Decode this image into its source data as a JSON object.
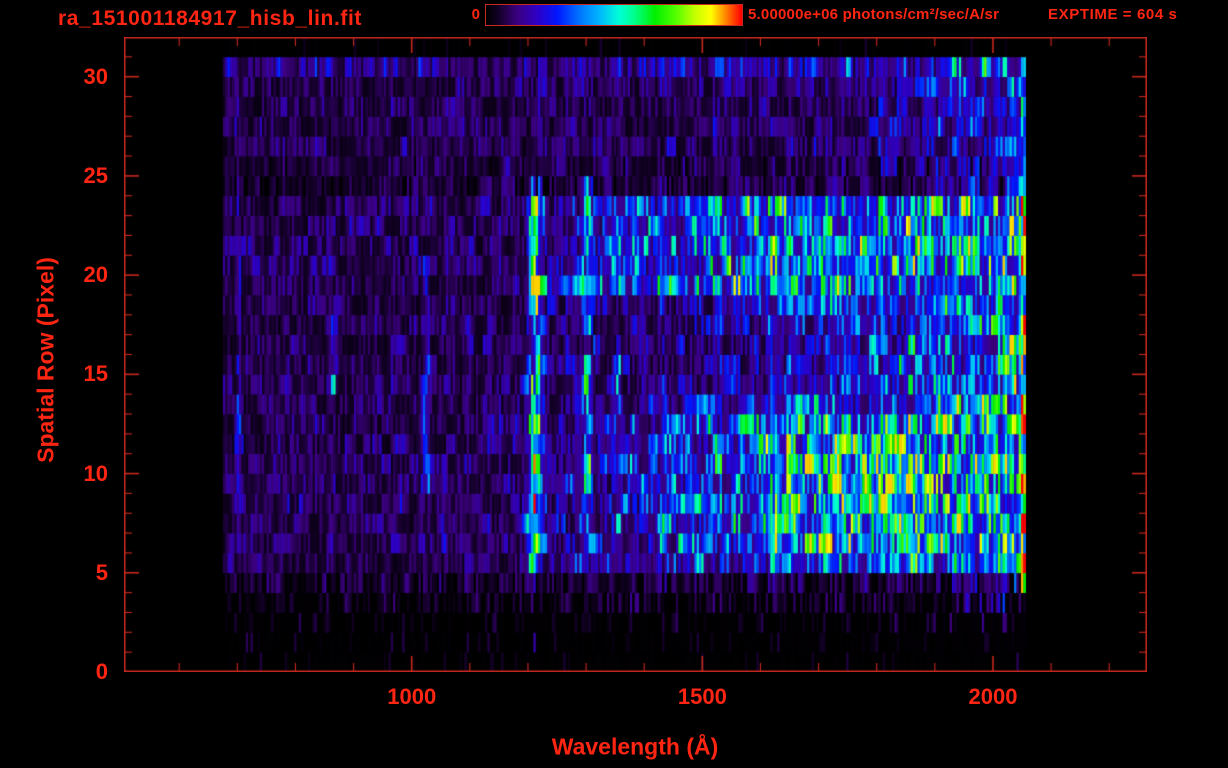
{
  "header": {
    "title": "ra_151001184917_hisb_lin.fit",
    "colorbar_min_label": "0",
    "colorbar_max_label": "5.00000e+06 photons/cm²/sec/A/sr",
    "exptime_label": "EXPTIME = 604 s"
  },
  "colors": {
    "background": "#000000",
    "text_red": "#ff2513",
    "axis_red": "#c8281e"
  },
  "chart_data": {
    "type": "heatmap",
    "title": "ra_151001184917_hisb_lin.fit",
    "xlabel": "Wavelength (Å)",
    "ylabel": "Spatial Row (Pixel)",
    "xlim": [
      505,
      2265
    ],
    "ylim": [
      0,
      32
    ],
    "xticks_major": [
      1000,
      1500,
      2000
    ],
    "xtick_minor_step": 100,
    "yticks_major": [
      0,
      5,
      10,
      15,
      20,
      25,
      30
    ],
    "ytick_minor_step": 1,
    "colorbar": {
      "min": 0,
      "max": 5000000,
      "max_label": "5.00000e+06",
      "units": "photons/cm²/sec/A/sr"
    },
    "exptime_seconds": 604,
    "n_rows": 32,
    "data_wavelength_range": [
      676,
      2057
    ],
    "colormap_stops": [
      [
        0.0,
        "#000000"
      ],
      [
        0.05,
        "#140029"
      ],
      [
        0.12,
        "#3c0080"
      ],
      [
        0.2,
        "#2e00c8"
      ],
      [
        0.28,
        "#0018ff"
      ],
      [
        0.36,
        "#0070ff"
      ],
      [
        0.44,
        "#00b4ff"
      ],
      [
        0.52,
        "#00ffd8"
      ],
      [
        0.58,
        "#00ff8c"
      ],
      [
        0.66,
        "#00f000"
      ],
      [
        0.74,
        "#50ff00"
      ],
      [
        0.82,
        "#c8ff00"
      ],
      [
        0.88,
        "#ffff00"
      ],
      [
        0.93,
        "#ff9600"
      ],
      [
        1.0,
        "#ff0000"
      ]
    ],
    "noise": {
      "seed": 7,
      "mult_min": 0.22,
      "mult_span": 1.75,
      "clamp": 0.9
    },
    "row_profiles": [
      {
        "pts": [
          [
            676,
            0.04
          ],
          [
            2057,
            0.06
          ]
        ],
        "sparse": 0.07
      },
      {
        "pts": [
          [
            676,
            0.05
          ],
          [
            1800,
            0.06
          ],
          [
            2000,
            0.12
          ],
          [
            2057,
            0.18
          ]
        ],
        "sparse": 0.12
      },
      {
        "pts": [
          [
            676,
            0.05
          ],
          [
            1800,
            0.06
          ],
          [
            2000,
            0.15
          ],
          [
            2057,
            0.2
          ]
        ],
        "sparse": 0.2
      },
      {
        "pts": [
          [
            676,
            0.06
          ],
          [
            1500,
            0.08
          ],
          [
            1950,
            0.12
          ],
          [
            2057,
            0.28
          ]
        ],
        "sparse": 0.5
      },
      {
        "pts": [
          [
            676,
            0.08
          ],
          [
            1500,
            0.1
          ],
          [
            1900,
            0.13
          ],
          [
            2010,
            0.22
          ],
          [
            2057,
            0.3
          ]
        ],
        "sparse": 0.8
      },
      {
        "pts": [
          [
            676,
            0.1
          ],
          [
            1190,
            0.12
          ],
          [
            1250,
            0.25
          ],
          [
            1500,
            0.33
          ],
          [
            1700,
            0.45
          ],
          [
            1950,
            0.5
          ],
          [
            2057,
            0.5
          ]
        ],
        "sparse": 1
      },
      {
        "pts": [
          [
            676,
            0.12
          ],
          [
            1190,
            0.14
          ],
          [
            1250,
            0.2
          ],
          [
            1450,
            0.33
          ],
          [
            1650,
            0.57
          ],
          [
            1800,
            0.67
          ],
          [
            1950,
            0.71
          ],
          [
            2057,
            0.65
          ]
        ],
        "sparse": 1
      },
      {
        "pts": [
          [
            676,
            0.12
          ],
          [
            1190,
            0.14
          ],
          [
            1250,
            0.2
          ],
          [
            1450,
            0.34
          ],
          [
            1650,
            0.58
          ],
          [
            1800,
            0.68
          ],
          [
            1950,
            0.72
          ],
          [
            2057,
            0.66
          ]
        ],
        "sparse": 1
      },
      {
        "pts": [
          [
            676,
            0.13
          ],
          [
            1190,
            0.15
          ],
          [
            1250,
            0.21
          ],
          [
            1450,
            0.34
          ],
          [
            1650,
            0.59
          ],
          [
            1800,
            0.69
          ],
          [
            1950,
            0.73
          ],
          [
            2057,
            0.66
          ]
        ],
        "sparse": 1
      },
      {
        "pts": [
          [
            676,
            0.13
          ],
          [
            1190,
            0.15
          ],
          [
            1250,
            0.21
          ],
          [
            1450,
            0.34
          ],
          [
            1650,
            0.59
          ],
          [
            1800,
            0.69
          ],
          [
            1950,
            0.73
          ],
          [
            2057,
            0.66
          ]
        ],
        "sparse": 1
      },
      {
        "pts": [
          [
            676,
            0.13
          ],
          [
            1190,
            0.15
          ],
          [
            1250,
            0.21
          ],
          [
            1450,
            0.34
          ],
          [
            1650,
            0.58
          ],
          [
            1800,
            0.68
          ],
          [
            1950,
            0.72
          ],
          [
            2057,
            0.65
          ]
        ],
        "sparse": 1
      },
      {
        "pts": [
          [
            676,
            0.12
          ],
          [
            1190,
            0.14
          ],
          [
            1250,
            0.2
          ],
          [
            1450,
            0.33
          ],
          [
            1650,
            0.56
          ],
          [
            1800,
            0.66
          ],
          [
            1950,
            0.7
          ],
          [
            2057,
            0.64
          ]
        ],
        "sparse": 1
      },
      {
        "pts": [
          [
            676,
            0.12
          ],
          [
            1190,
            0.14
          ],
          [
            1250,
            0.2
          ],
          [
            1450,
            0.31
          ],
          [
            1650,
            0.54
          ],
          [
            1800,
            0.63
          ],
          [
            1950,
            0.66
          ],
          [
            2057,
            0.61
          ]
        ],
        "sparse": 1
      },
      {
        "pts": [
          [
            676,
            0.11
          ],
          [
            1190,
            0.13
          ],
          [
            1300,
            0.17
          ],
          [
            1500,
            0.25
          ],
          [
            1750,
            0.4
          ],
          [
            1950,
            0.52
          ],
          [
            2057,
            0.52
          ]
        ],
        "sparse": 1
      },
      {
        "pts": [
          [
            676,
            0.11
          ],
          [
            1190,
            0.13
          ],
          [
            1300,
            0.15
          ],
          [
            1500,
            0.2
          ],
          [
            1750,
            0.32
          ],
          [
            1950,
            0.47
          ],
          [
            2057,
            0.49
          ]
        ],
        "sparse": 1
      },
      {
        "pts": [
          [
            676,
            0.1
          ],
          [
            1190,
            0.13
          ],
          [
            1300,
            0.15
          ],
          [
            1500,
            0.18
          ],
          [
            1750,
            0.3
          ],
          [
            1950,
            0.45
          ],
          [
            2057,
            0.47
          ]
        ],
        "sparse": 1
      },
      {
        "pts": [
          [
            676,
            0.1
          ],
          [
            1190,
            0.13
          ],
          [
            1300,
            0.15
          ],
          [
            1500,
            0.18
          ],
          [
            1750,
            0.3
          ],
          [
            1950,
            0.45
          ],
          [
            2057,
            0.47
          ]
        ],
        "sparse": 1
      },
      {
        "pts": [
          [
            676,
            0.1
          ],
          [
            1190,
            0.13
          ],
          [
            1300,
            0.15
          ],
          [
            1500,
            0.19
          ],
          [
            1750,
            0.32
          ],
          [
            1950,
            0.45
          ],
          [
            2057,
            0.47
          ]
        ],
        "sparse": 1
      },
      {
        "pts": [
          [
            676,
            0.11
          ],
          [
            1190,
            0.13
          ],
          [
            1300,
            0.16
          ],
          [
            1500,
            0.2
          ],
          [
            1750,
            0.34
          ],
          [
            1950,
            0.47
          ],
          [
            2057,
            0.49
          ]
        ],
        "sparse": 1
      },
      {
        "pts": [
          [
            676,
            0.11
          ],
          [
            1190,
            0.12
          ],
          [
            1225,
            0.42
          ],
          [
            1500,
            0.46
          ],
          [
            1750,
            0.5
          ],
          [
            1950,
            0.54
          ],
          [
            2057,
            0.54
          ]
        ],
        "sparse": 1
      },
      {
        "pts": [
          [
            676,
            0.12
          ],
          [
            1190,
            0.15
          ],
          [
            1260,
            0.24
          ],
          [
            1400,
            0.37
          ],
          [
            1600,
            0.53
          ],
          [
            1800,
            0.61
          ],
          [
            1950,
            0.63
          ],
          [
            2057,
            0.61
          ]
        ],
        "sparse": 1
      },
      {
        "pts": [
          [
            676,
            0.12
          ],
          [
            1190,
            0.15
          ],
          [
            1260,
            0.24
          ],
          [
            1400,
            0.38
          ],
          [
            1600,
            0.55
          ],
          [
            1800,
            0.63
          ],
          [
            1950,
            0.65
          ],
          [
            2057,
            0.63
          ]
        ],
        "sparse": 1
      },
      {
        "pts": [
          [
            676,
            0.12
          ],
          [
            1190,
            0.15
          ],
          [
            1260,
            0.23
          ],
          [
            1400,
            0.36
          ],
          [
            1600,
            0.52
          ],
          [
            1800,
            0.6
          ],
          [
            1950,
            0.62
          ],
          [
            2057,
            0.6
          ]
        ],
        "sparse": 1
      },
      {
        "pts": [
          [
            676,
            0.11
          ],
          [
            1190,
            0.14
          ],
          [
            1260,
            0.22
          ],
          [
            1400,
            0.34
          ],
          [
            1600,
            0.49
          ],
          [
            1800,
            0.57
          ],
          [
            1950,
            0.59
          ],
          [
            2057,
            0.58
          ]
        ],
        "sparse": 1
      },
      {
        "pts": [
          [
            676,
            0.09
          ],
          [
            1300,
            0.1
          ],
          [
            1800,
            0.12
          ],
          [
            2000,
            0.22
          ],
          [
            2057,
            0.28
          ]
        ],
        "sparse": 0.9
      },
      {
        "pts": [
          [
            676,
            0.1
          ],
          [
            1300,
            0.11
          ],
          [
            1800,
            0.14
          ],
          [
            2000,
            0.26
          ],
          [
            2057,
            0.3
          ]
        ],
        "sparse": 0.95
      },
      {
        "pts": [
          [
            676,
            0.11
          ],
          [
            1300,
            0.12
          ],
          [
            1800,
            0.16
          ],
          [
            2000,
            0.3
          ],
          [
            2057,
            0.36
          ]
        ],
        "sparse": 1
      },
      {
        "pts": [
          [
            676,
            0.11
          ],
          [
            1300,
            0.12
          ],
          [
            1800,
            0.16
          ],
          [
            2000,
            0.3
          ],
          [
            2057,
            0.36
          ]
        ],
        "sparse": 1
      },
      {
        "pts": [
          [
            676,
            0.11
          ],
          [
            1300,
            0.12
          ],
          [
            1800,
            0.16
          ],
          [
            2000,
            0.31
          ],
          [
            2057,
            0.36
          ]
        ],
        "sparse": 1
      },
      {
        "pts": [
          [
            676,
            0.11
          ],
          [
            1300,
            0.13
          ],
          [
            1800,
            0.17
          ],
          [
            2000,
            0.32
          ],
          [
            2057,
            0.37
          ]
        ],
        "sparse": 1
      },
      {
        "pts": [
          [
            676,
            0.17
          ],
          [
            1300,
            0.19
          ],
          [
            1800,
            0.26
          ],
          [
            2000,
            0.4
          ],
          [
            2057,
            0.45
          ]
        ],
        "sparse": 1
      },
      {
        "pts": [
          [
            676,
            0.03
          ],
          [
            2057,
            0.04
          ]
        ],
        "sparse": 0.05
      }
    ],
    "emission_lines": [
      {
        "name": "data-start-edge",
        "wavelength": 702,
        "width": 9,
        "row_range": [
          5,
          24
        ],
        "intensity": 0.16
      },
      {
        "name": "line-865",
        "wavelength": 865,
        "width": 10,
        "row_range": [
          14,
          17.5
        ],
        "intensity": 0.3
      },
      {
        "name": "lyman-beta-1025",
        "wavelength": 1025,
        "width": 12,
        "row_range": [
          9,
          20
        ],
        "intensity": 0.22
      },
      {
        "name": "lyman-alpha-1216",
        "wavelength": 1213,
        "width": 24,
        "row_range": [
          5,
          24
        ],
        "intensity": 0.5
      },
      {
        "name": "lyman-alpha-core",
        "wavelength": 1213,
        "width": 15,
        "row_range": [
          7.5,
          12.5
        ],
        "intensity": 0.34,
        "hot": true
      },
      {
        "name": "lyman-alpha-upper",
        "wavelength": 1213,
        "width": 15,
        "row_range": [
          19,
          23.5
        ],
        "intensity": 0.18
      },
      {
        "name": "lyman-alpha-below-slit",
        "wavelength": 1213,
        "width": 12,
        "row_range": [
          0,
          4.9
        ],
        "intensity": 0.05
      },
      {
        "name": "oi-1304",
        "wavelength": 1302,
        "width": 15,
        "row_range": [
          5.5,
          24
        ],
        "intensity": 0.32
      },
      {
        "name": "oi-1304-lower",
        "wavelength": 1302,
        "width": 11,
        "row_range": [
          6,
          14
        ],
        "intensity": 0.14
      },
      {
        "name": "oi-1356",
        "wavelength": 1356,
        "width": 10,
        "row_range": [
          5.5,
          16
        ],
        "intensity": 0.16
      },
      {
        "name": "edge-green-2035",
        "wavelength": 2032,
        "width": 12,
        "row_range": [
          4,
          30
        ],
        "intensity": 0.18
      },
      {
        "name": "red-edge-2052",
        "wavelength": 2051,
        "width": 8,
        "row_range": [
          3,
          23.5
        ],
        "intensity": 0.85,
        "hot": true
      },
      {
        "name": "red-edge-upper",
        "wavelength": 2051,
        "width": 8,
        "row_range": [
          23.5,
          30
        ],
        "intensity": 0.45,
        "hot": true
      }
    ]
  }
}
